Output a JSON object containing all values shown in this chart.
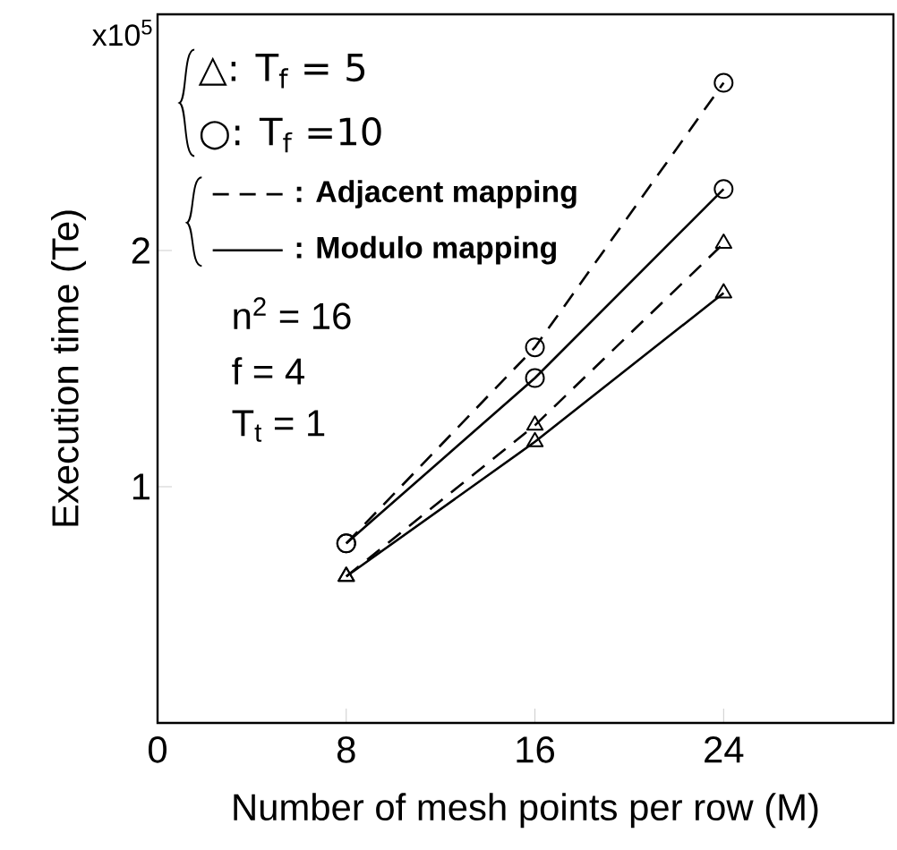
{
  "chart_data": {
    "type": "line",
    "xlabel": "Number of mesh points per row (M)",
    "ylabel": "Execution time (Te)",
    "x": [
      8,
      16,
      24
    ],
    "series": [
      {
        "color": "#000000",
        "marker": "circle",
        "line_style": "dashed",
        "values": [
          0.76,
          1.59,
          2.71
        ]
      },
      {
        "color": "#000000",
        "marker": "circle",
        "line_style": "solid",
        "values": [
          0.76,
          1.46,
          2.26
        ]
      },
      {
        "color": "#000000",
        "marker": "triangle",
        "line_style": "dashed",
        "values": [
          0.62,
          1.26,
          2.03
        ]
      },
      {
        "color": "#000000",
        "marker": "triangle",
        "line_style": "solid",
        "values": [
          0.62,
          1.19,
          1.82
        ]
      }
    ],
    "xlim": [
      0,
      31.2
    ],
    "ylim": [
      0,
      3
    ],
    "xticks": [
      0,
      8,
      16,
      24
    ],
    "yticks": [
      1,
      2
    ],
    "annotations": [
      "x10$^{5}$",
      "△: T$_{f}$ = 5",
      "○: T$_{f}$ =10",
      ": Adjacent mapping",
      ": Modulo mapping",
      "n$^{2}$ = 16",
      "f = 4",
      "T$_{t}$ = 1"
    ]
  }
}
